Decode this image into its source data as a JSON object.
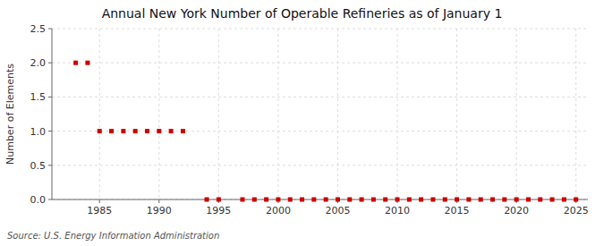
{
  "chart_data": {
    "type": "scatter",
    "title": "Annual New York Number of Operable Refineries as of January 1",
    "y_label": "Number of Elements",
    "annotations": [
      "Source: U.S. Energy Information Administration"
    ],
    "color": "#cc0000",
    "marker": "square",
    "grid": true,
    "xlim": [
      1981,
      2026
    ],
    "ylim": [
      0.0,
      2.5
    ],
    "xticks": [
      1985,
      1990,
      1995,
      2000,
      2005,
      2010,
      2015,
      2020,
      2025
    ],
    "yticks": [
      {
        "value": 0.0,
        "label": "0.0"
      },
      0.5,
      {
        "value": 1.0,
        "label": "1.0"
      },
      1.5,
      {
        "value": 2.0,
        "label": "2.0"
      },
      2.5
    ],
    "x": [
      1983,
      1984,
      1985,
      1986,
      1987,
      1988,
      1989,
      1990,
      1991,
      1992,
      1994,
      1995,
      1997,
      1998,
      1999,
      2000,
      2001,
      2002,
      2003,
      2004,
      2005,
      2006,
      2007,
      2008,
      2009,
      2010,
      2011,
      2012,
      2013,
      2014,
      2015,
      2016,
      2017,
      2018,
      2019,
      2020,
      2021,
      2022,
      2023,
      2024,
      2025
    ],
    "values": [
      2,
      2,
      1,
      1,
      1,
      1,
      1,
      1,
      1,
      1,
      0,
      0,
      0,
      0,
      0,
      0,
      0,
      0,
      0,
      0,
      0,
      0,
      0,
      0,
      0,
      0,
      0,
      0,
      0,
      0,
      0,
      0,
      0,
      0,
      0,
      0,
      0,
      0,
      0,
      0,
      0
    ]
  }
}
